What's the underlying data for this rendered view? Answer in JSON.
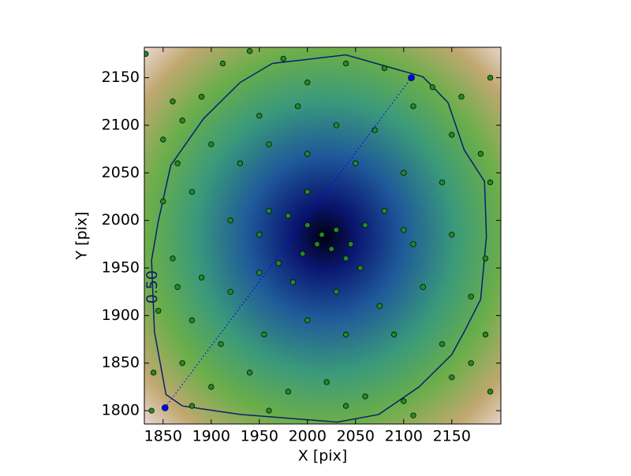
{
  "chart_data": {
    "type": "scatter",
    "xlabel": "X [pix]",
    "ylabel": "Y [pix]",
    "xlim": [
      1830.5,
      2201
    ],
    "ylim": [
      1786,
      2182
    ],
    "xticks": [
      1850,
      1900,
      1950,
      2000,
      2050,
      2100,
      2150
    ],
    "yticks": [
      1800,
      1850,
      1900,
      1950,
      2000,
      2050,
      2100,
      2150
    ],
    "color": "#228b22",
    "x": [
      1832,
      1860,
      1870,
      1850,
      1865,
      1890,
      1912,
      1940,
      1975,
      2000,
      2040,
      2080,
      2130,
      2160,
      2190,
      1950,
      1990,
      2030,
      2070,
      2110,
      2150,
      2180,
      1900,
      1930,
      1960,
      2000,
      2050,
      2100,
      2140,
      2190,
      1850,
      1880,
      1920,
      1960,
      1980,
      2000,
      2015,
      2030,
      2045,
      2060,
      2080,
      2010,
      2025,
      1995,
      2040,
      1970,
      2055,
      2110,
      2150,
      2185,
      1860,
      1890,
      1920,
      1950,
      1985,
      2030,
      2075,
      2120,
      2170,
      1845,
      1880,
      1910,
      1955,
      2000,
      2040,
      2090,
      2140,
      2185,
      1840,
      1870,
      1900,
      1940,
      1980,
      2020,
      2060,
      2100,
      2150,
      2190,
      1838,
      1880,
      1960,
      2040,
      2110,
      2170,
      1865,
      2000,
      2100,
      1950
    ],
    "y": [
      2175,
      2125,
      2105,
      2085,
      2060,
      2130,
      2165,
      2178,
      2170,
      2145,
      2165,
      2160,
      2140,
      2130,
      2150,
      2110,
      2120,
      2100,
      2095,
      2120,
      2090,
      2070,
      2080,
      2060,
      2080,
      2070,
      2060,
      2050,
      2040,
      2040,
      2020,
      2030,
      2000,
      2010,
      2005,
      1995,
      1985,
      1990,
      1975,
      1995,
      2010,
      1975,
      1970,
      1965,
      1960,
      1955,
      1950,
      1975,
      1985,
      1960,
      1960,
      1940,
      1925,
      1945,
      1935,
      1925,
      1910,
      1930,
      1920,
      1905,
      1895,
      1870,
      1880,
      1895,
      1880,
      1880,
      1870,
      1880,
      1840,
      1850,
      1825,
      1840,
      1820,
      1830,
      1815,
      1810,
      1835,
      1820,
      1800,
      1805,
      1800,
      1805,
      1795,
      1850,
      1930,
      2030,
      1990,
      1985
    ],
    "contour": {
      "label": "0.50",
      "label_x": 1839,
      "label_y": 1930,
      "color": "#0a1f6e",
      "x": [
        1963.5,
        2040,
        2120,
        2146,
        2163,
        2184,
        2186,
        2180,
        2163,
        2150,
        2116,
        2074,
        2031,
        1930,
        1870,
        1853,
        1841,
        1838,
        1845,
        1858,
        1892,
        1930,
        1963.5
      ],
      "y": [
        2165,
        2174,
        2151,
        2124,
        2074,
        2041,
        1983,
        1917,
        1883,
        1859,
        1825,
        1796,
        1788,
        1796,
        1805,
        1817,
        1883,
        1958,
        1999,
        2058,
        2107,
        2145,
        2165
      ]
    },
    "line": {
      "color": "#0000ff",
      "x": [
        1852,
        2108
      ],
      "y": [
        1803,
        2150
      ]
    }
  }
}
